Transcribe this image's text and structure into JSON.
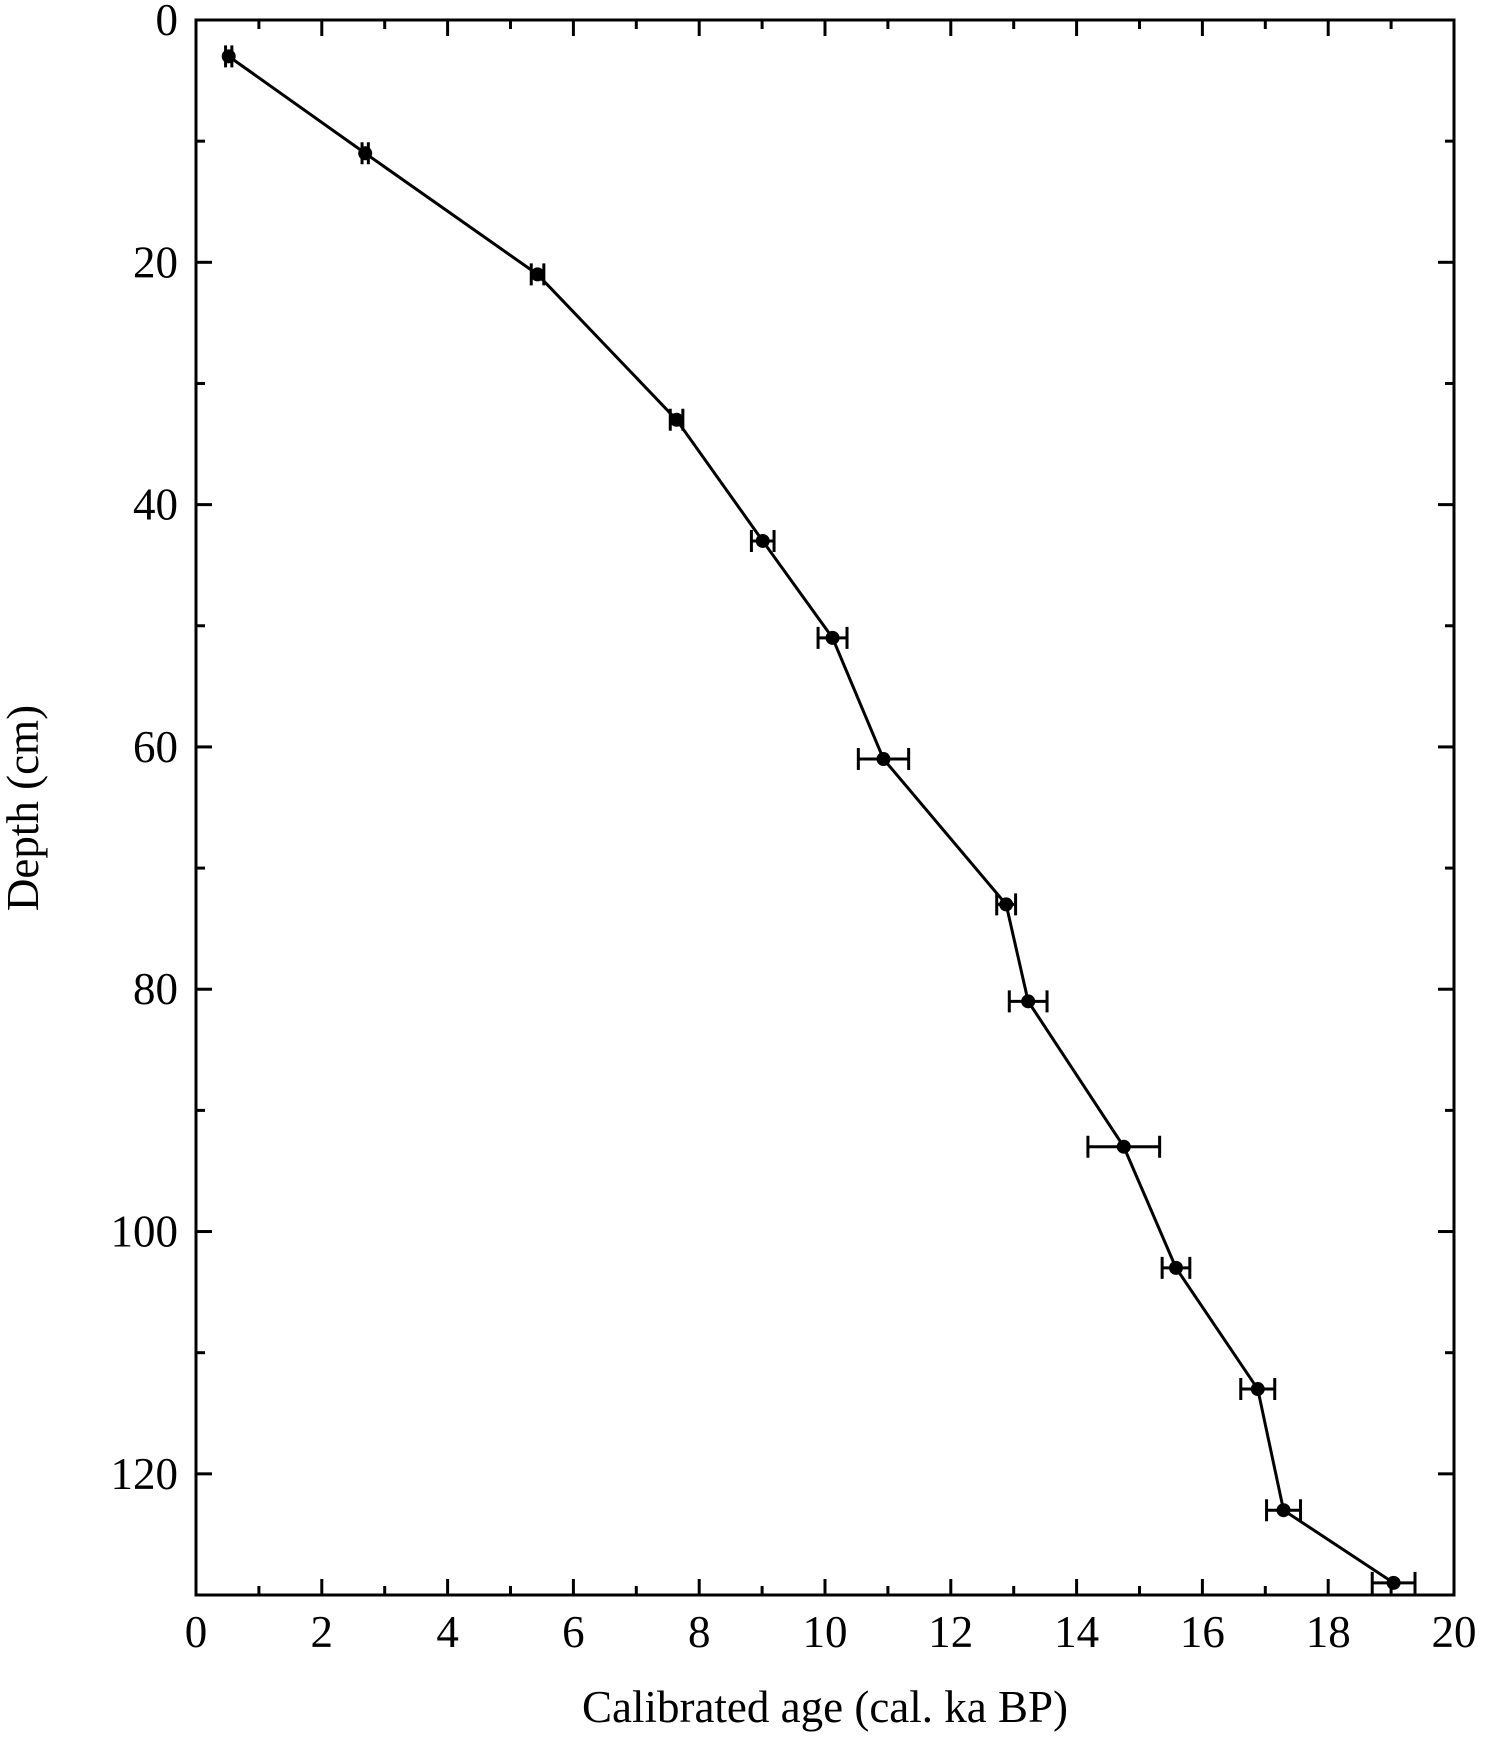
{
  "chart_data": {
    "type": "line",
    "xlabel": "Calibrated age (cal. ka BP)",
    "ylabel": "Depth (cm)",
    "x": [
      0.52,
      2.69,
      5.43,
      7.64,
      9.01,
      10.12,
      10.93,
      12.88,
      13.23,
      14.75,
      15.58,
      16.88,
      17.29,
      19.04
    ],
    "y": [
      3,
      11,
      21,
      33,
      43,
      51,
      61,
      73,
      81,
      93,
      103,
      113,
      123,
      129
    ],
    "xerr": [
      0.05,
      0.05,
      0.1,
      0.1,
      0.18,
      0.23,
      0.4,
      0.15,
      0.3,
      0.57,
      0.22,
      0.27,
      0.27,
      0.34
    ],
    "color": "#000000",
    "xlim": [
      0,
      20
    ],
    "xticks": [
      0,
      2,
      4,
      6,
      8,
      10,
      12,
      14,
      16,
      18,
      20
    ],
    "xminorticks": [
      1,
      3,
      5,
      7,
      9,
      11,
      13,
      15,
      17,
      19
    ],
    "ylim": [
      0,
      130
    ],
    "yticks": [
      0,
      20,
      40,
      60,
      80,
      100,
      120
    ],
    "yminorticks": [
      10,
      30,
      50,
      70,
      90,
      110
    ],
    "yinverted": true
  }
}
